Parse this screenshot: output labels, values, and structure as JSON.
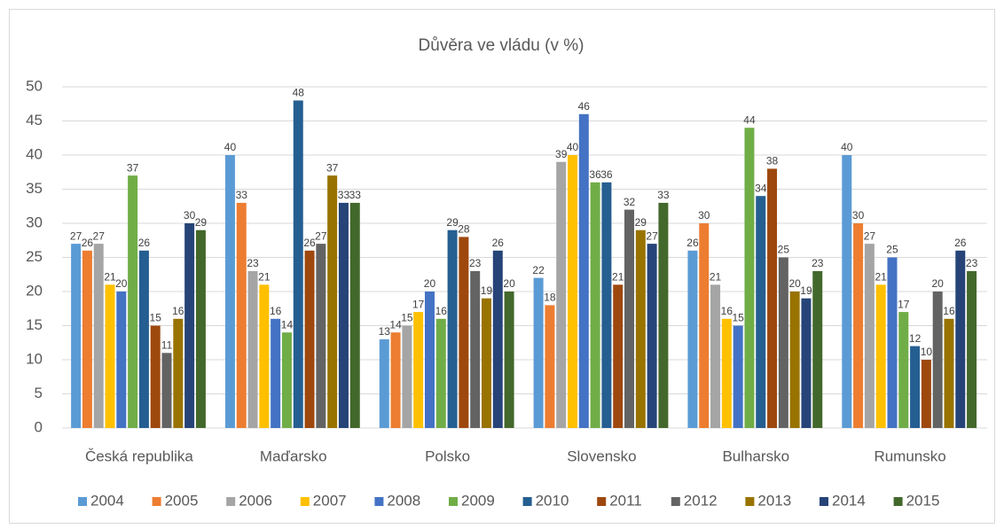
{
  "chart_data": {
    "type": "bar",
    "title": "Důvěra ve vládu (v %)",
    "categories": [
      "Česká republika",
      "Maďarsko",
      "Polsko",
      "Slovensko",
      "Bulharsko",
      "Rumunsko"
    ],
    "series": [
      {
        "name": "2004",
        "color": "#5b9bd5",
        "values": [
          27,
          40,
          13,
          22,
          26,
          40
        ]
      },
      {
        "name": "2005",
        "color": "#ed7d31",
        "values": [
          26,
          33,
          14,
          18,
          30,
          30
        ]
      },
      {
        "name": "2006",
        "color": "#a5a5a5",
        "values": [
          27,
          23,
          15,
          39,
          21,
          27
        ]
      },
      {
        "name": "2007",
        "color": "#ffc000",
        "values": [
          21,
          21,
          17,
          40,
          16,
          21
        ]
      },
      {
        "name": "2008",
        "color": "#4472c4",
        "values": [
          20,
          16,
          20,
          46,
          15,
          25
        ]
      },
      {
        "name": "2009",
        "color": "#70ad47",
        "values": [
          37,
          14,
          16,
          36,
          44,
          17
        ]
      },
      {
        "name": "2010",
        "color": "#255e91",
        "values": [
          26,
          48,
          29,
          36,
          34,
          12
        ]
      },
      {
        "name": "2011",
        "color": "#9e480e",
        "values": [
          15,
          26,
          28,
          21,
          38,
          10
        ]
      },
      {
        "name": "2012",
        "color": "#636363",
        "values": [
          11,
          27,
          23,
          32,
          25,
          20
        ]
      },
      {
        "name": "2013",
        "color": "#997300",
        "values": [
          16,
          37,
          19,
          29,
          20,
          16
        ]
      },
      {
        "name": "2014",
        "color": "#264478",
        "values": [
          30,
          33,
          26,
          27,
          19,
          26
        ]
      },
      {
        "name": "2015",
        "color": "#43682b",
        "values": [
          29,
          33,
          20,
          33,
          23,
          23
        ]
      }
    ],
    "ylim": [
      0,
      50
    ],
    "yticks": [
      0,
      5,
      10,
      15,
      20,
      25,
      30,
      35,
      40,
      45,
      50
    ],
    "grid": true,
    "legend": "bottom"
  }
}
